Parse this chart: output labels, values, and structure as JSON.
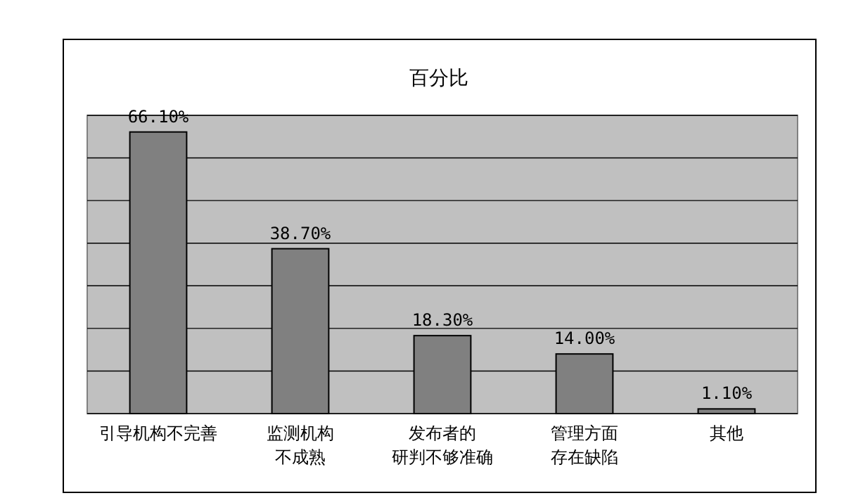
{
  "chart_data": {
    "type": "bar",
    "title": "百分比",
    "categories": [
      "引导机构不完善",
      "监测机构不成熟",
      "发布者的研判不够准确",
      "管理方面存在缺陷",
      "其他"
    ],
    "values": [
      66.1,
      38.7,
      18.3,
      14.0,
      1.1
    ],
    "value_labels": [
      "66.10%",
      "38.70%",
      "18.30%",
      "14.00%",
      "1.10%"
    ],
    "color": "#808080",
    "ylim": [
      0,
      70
    ],
    "yticks": [
      {
        "value": 0,
        "label": null
      },
      {
        "value": 10,
        "label": null
      },
      {
        "value": 20,
        "label": null
      },
      {
        "value": 30,
        "label": null
      },
      {
        "value": 40,
        "label": null
      },
      {
        "value": 50,
        "label": null
      },
      {
        "value": 60,
        "label": null
      },
      {
        "value": 70,
        "label": null
      }
    ],
    "tick_labels": "x",
    "grid": "y"
  }
}
